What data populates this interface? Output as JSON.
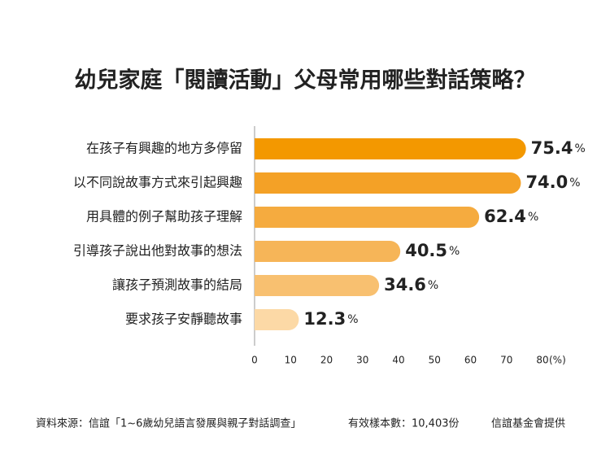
{
  "chart_data": {
    "type": "bar",
    "orientation": "horizontal",
    "title": "幼兒家庭「閱讀活動」父母常用哪些對話策略？",
    "categories": [
      "在孩子有興趣的地方多停留",
      "以不同說故事方式來引起興趣",
      "用具體的例子幫助孩子理解",
      "引導孩子說出他對故事的想法",
      "讓孩子預測故事的結局",
      "要求孩子安靜聽故事"
    ],
    "values": [
      75.4,
      74.0,
      62.4,
      40.5,
      34.6,
      12.3
    ],
    "value_labels": [
      "75.4%",
      "74.0%",
      "62.4%",
      "40.5%",
      "34.6%",
      "12.3%"
    ],
    "colors": [
      "#f39800",
      "#f4a126",
      "#f5ab3f",
      "#f6b558",
      "#f8c070",
      "#fcd9a6"
    ],
    "xlim": [
      0,
      80
    ],
    "xticks": [
      0,
      10,
      20,
      30,
      40,
      50,
      60,
      70,
      80
    ],
    "x_label": "(%)",
    "source": "資料來源：信誼「1~6歲幼兒語言發展與親子對話調查」",
    "sample": "有效樣本數：10,403份",
    "credit": "信誼基金會提供"
  }
}
